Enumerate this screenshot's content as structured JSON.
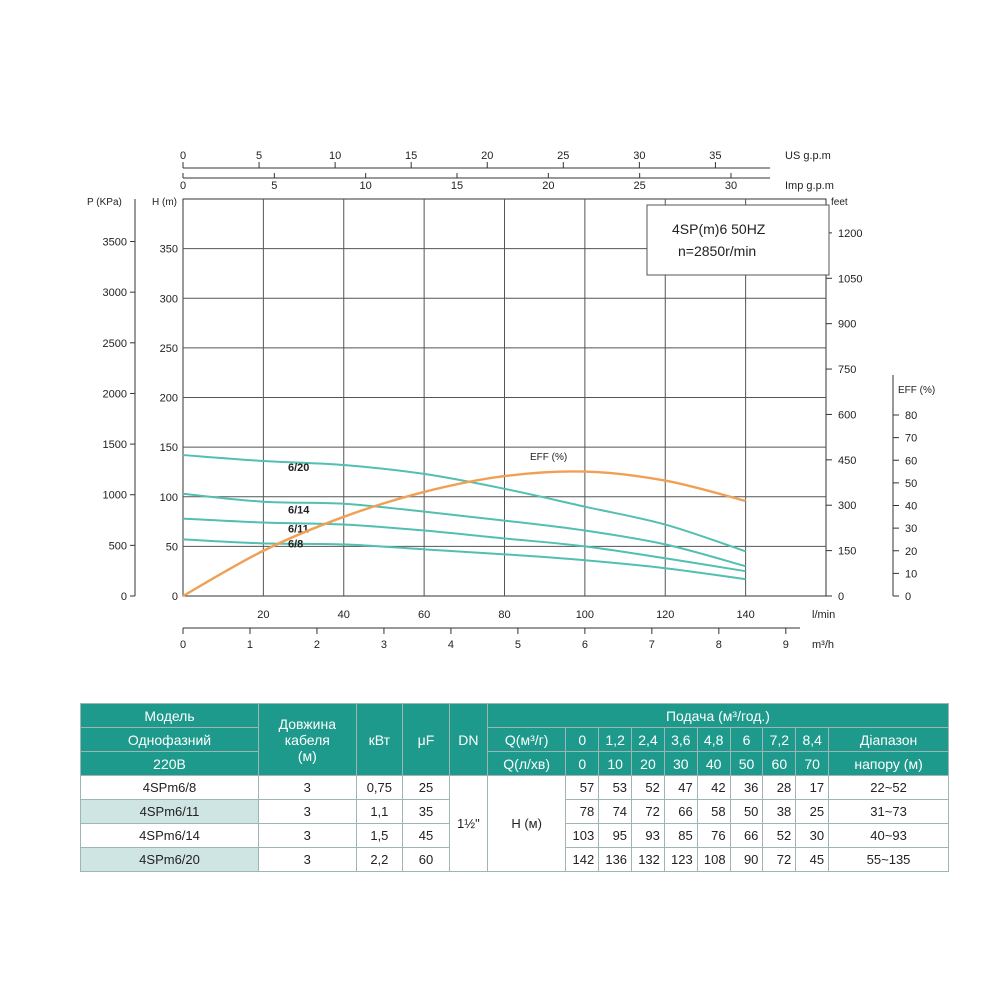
{
  "chart_data": {
    "type": "line",
    "info_box": [
      "4SP(m)6  50HZ",
      "n=2850r/min"
    ],
    "axes": {
      "flow_lmin": {
        "label": "l/min",
        "ticks": [
          20,
          40,
          60,
          80,
          100,
          120,
          140
        ],
        "range": [
          0,
          160
        ]
      },
      "flow_m3h": {
        "label": "m³/h",
        "ticks": [
          0,
          1,
          2,
          3,
          4,
          5,
          6,
          7,
          8,
          9
        ],
        "range": [
          0,
          9.6
        ]
      },
      "us_gpm": {
        "label": "US g.p.m",
        "ticks": [
          0,
          5,
          10,
          15,
          20,
          25,
          30,
          35
        ],
        "range": [
          0,
          42.27
        ]
      },
      "imp_gpm": {
        "label": "Imp g.p.m",
        "ticks": [
          0,
          5,
          10,
          15,
          20,
          25,
          30
        ],
        "range": [
          0,
          35.2
        ]
      },
      "head_m": {
        "label": "H (m)",
        "ticks": [
          0,
          50,
          100,
          150,
          200,
          250,
          300,
          350
        ],
        "range": [
          0,
          400
        ]
      },
      "pressure_kpa": {
        "label": "P (KPa)",
        "ticks": [
          0,
          500,
          1000,
          1500,
          2000,
          2500,
          3000,
          3500
        ],
        "range": [
          0,
          3920
        ]
      },
      "head_feet": {
        "label": "feet",
        "ticks": [
          0,
          150,
          300,
          450,
          600,
          750,
          900,
          1050,
          1200
        ],
        "range": [
          0,
          1312
        ]
      },
      "eff": {
        "label": "EFF (%)",
        "ticks": [
          0,
          10,
          20,
          30,
          40,
          50,
          60,
          70,
          80
        ],
        "range": [
          0,
          80
        ]
      }
    },
    "x_lmin": [
      0,
      10,
      20,
      30,
      40,
      50,
      60,
      70
    ],
    "series": [
      {
        "name": "6/8",
        "values": [
          57,
          53,
          52,
          47,
          42,
          36,
          28,
          17
        ]
      },
      {
        "name": "6/11",
        "values": [
          78,
          74,
          72,
          66,
          58,
          50,
          38,
          25
        ]
      },
      {
        "name": "6/14",
        "values": [
          103,
          95,
          93,
          85,
          76,
          66,
          52,
          30
        ]
      },
      {
        "name": "6/20",
        "values": [
          142,
          136,
          132,
          123,
          108,
          90,
          72,
          45
        ]
      }
    ],
    "efficiency": {
      "name": "EFF (%)",
      "x_lmin": [
        0,
        20,
        40,
        60,
        80,
        100,
        120,
        140
      ],
      "values": [
        0,
        20,
        35,
        46,
        53,
        55,
        51,
        42
      ]
    }
  },
  "table": {
    "header": {
      "model": [
        "Модель",
        "Однофазний",
        "220В"
      ],
      "cable": [
        "Довжина",
        "кабеля",
        "(м)"
      ],
      "kw": "кВт",
      "uf": "μF",
      "dn": "DN",
      "supply": "Подача (м³/год.)",
      "q_m3": "Q(м³/г)",
      "q_lmin": "Q(л/хв)",
      "range": [
        "Діапазон",
        "напору (м)"
      ]
    },
    "q_m3": [
      "0",
      "1,2",
      "2,4",
      "3,6",
      "4,8",
      "6",
      "7,2",
      "8,4"
    ],
    "q_lmin": [
      "0",
      "10",
      "20",
      "30",
      "40",
      "50",
      "60",
      "70"
    ],
    "dn_value": "1½\"",
    "h_label": "H (м)",
    "rows": [
      {
        "model": "4SPm6/8",
        "cable": "3",
        "kw": "0,75",
        "uf": "25",
        "h": [
          "57",
          "53",
          "52",
          "47",
          "42",
          "36",
          "28",
          "17"
        ],
        "range": "22~52"
      },
      {
        "model": "4SPm6/11",
        "cable": "3",
        "kw": "1,1",
        "uf": "35",
        "h": [
          "78",
          "74",
          "72",
          "66",
          "58",
          "50",
          "38",
          "25"
        ],
        "range": "31~73"
      },
      {
        "model": "4SPm6/14",
        "cable": "3",
        "kw": "1,5",
        "uf": "45",
        "h": [
          "103",
          "95",
          "93",
          "85",
          "76",
          "66",
          "52",
          "30"
        ],
        "range": "40~93"
      },
      {
        "model": "4SPm6/20",
        "cable": "3",
        "kw": "2,2",
        "uf": "60",
        "h": [
          "142",
          "136",
          "132",
          "123",
          "108",
          "90",
          "72",
          "45"
        ],
        "range": "55~135"
      }
    ]
  },
  "colors": {
    "curves": "#52bfb0",
    "efficiency": "#f0a055",
    "header_bg": "#1d9a8c",
    "row_tint": "#cfe5e3"
  }
}
